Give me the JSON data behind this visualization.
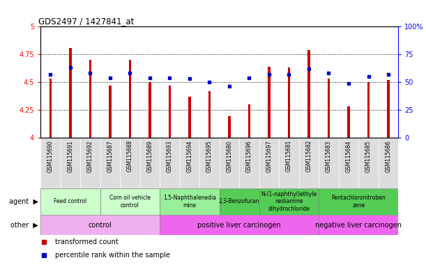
{
  "title": "GDS2497 / 1427841_at",
  "samples": [
    "GSM115690",
    "GSM115691",
    "GSM115692",
    "GSM115687",
    "GSM115688",
    "GSM115689",
    "GSM115693",
    "GSM115694",
    "GSM115695",
    "GSM115680",
    "GSM115696",
    "GSM115697",
    "GSM115681",
    "GSM115682",
    "GSM115683",
    "GSM115684",
    "GSM115685",
    "GSM115686"
  ],
  "transformed_count": [
    4.53,
    4.81,
    4.7,
    4.47,
    4.7,
    4.5,
    4.47,
    4.37,
    4.42,
    4.19,
    4.3,
    4.64,
    4.63,
    4.79,
    4.53,
    4.28,
    4.5,
    4.52
  ],
  "percentile_rank": [
    57,
    63,
    58,
    54,
    58,
    54,
    54,
    53,
    50,
    46,
    54,
    57,
    57,
    62,
    58,
    49,
    55,
    57
  ],
  "ylim_left": [
    4.0,
    5.0
  ],
  "ylim_right": [
    0,
    100
  ],
  "yticks_left": [
    4.0,
    4.25,
    4.5,
    4.75,
    5.0
  ],
  "yticks_right": [
    0,
    25,
    50,
    75,
    100
  ],
  "ytick_labels_left": [
    "4",
    "4.25",
    "4.5",
    "4.75",
    "5"
  ],
  "ytick_labels_right": [
    "0",
    "25",
    "50",
    "75",
    "100%"
  ],
  "bar_color": "#cc0000",
  "marker_color": "#0000cc",
  "bar_bottom": 4.0,
  "bar_width": 0.12,
  "agent_groups": [
    {
      "label": "Feed control",
      "start": 0,
      "end": 3,
      "color": "#ccffcc"
    },
    {
      "label": "Corn oil vehicle\ncontrol",
      "start": 3,
      "end": 6,
      "color": "#ccffcc"
    },
    {
      "label": "1,5-Naphthalenedia\nmine",
      "start": 6,
      "end": 9,
      "color": "#99ee99"
    },
    {
      "label": "2,3-Benzofuran",
      "start": 9,
      "end": 11,
      "color": "#55cc55"
    },
    {
      "label": "N-(1-naphthyl)ethyle\nnediamine\ndihydrochloride",
      "start": 11,
      "end": 14,
      "color": "#55cc55"
    },
    {
      "label": "Pentachloronitroben\nzene",
      "start": 14,
      "end": 18,
      "color": "#55cc55"
    }
  ],
  "other_groups": [
    {
      "label": "control",
      "start": 0,
      "end": 6,
      "color": "#f0b0f0"
    },
    {
      "label": "positive liver carcinogen",
      "start": 6,
      "end": 14,
      "color": "#ee66ee"
    },
    {
      "label": "negative liver carcinogen",
      "start": 14,
      "end": 18,
      "color": "#ee66ee"
    }
  ],
  "tick_bg_color": "#dddddd",
  "legend_bar_color": "#cc0000",
  "legend_marker_color": "#0000cc"
}
